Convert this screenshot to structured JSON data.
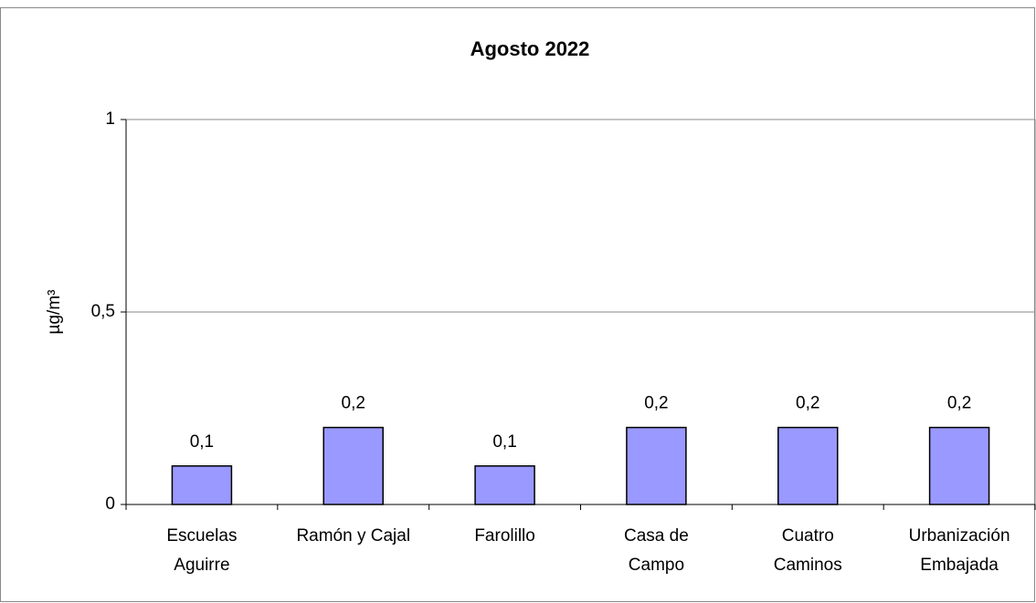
{
  "chart_data": {
    "type": "bar",
    "title": "Agosto 2022",
    "y_label": "µg/m³",
    "categories": [
      [
        "Escuelas",
        "Aguirre"
      ],
      [
        "Ramón y Cajal"
      ],
      [
        "Farolillo"
      ],
      [
        "Casa de",
        "Campo"
      ],
      [
        "Cuatro",
        "Caminos"
      ],
      [
        "Urbanización",
        "Embajada"
      ]
    ],
    "values": [
      0.1,
      0.2,
      0.1,
      0.2,
      0.2,
      0.2
    ],
    "value_labels": [
      "0,1",
      "0,2",
      "0,1",
      "0,2",
      "0,2",
      "0,2"
    ],
    "color": "#9999ff",
    "ylim": [
      0,
      1
    ],
    "yticks": [
      0,
      {
        "value": 0.5,
        "label": "0,5"
      },
      1
    ],
    "grid": true
  }
}
